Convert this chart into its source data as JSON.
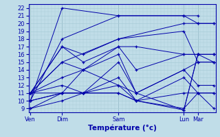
{
  "xlabel": "Température (°c)",
  "bg_color": "#c0dde8",
  "grid_color_minor": "#a8ccd8",
  "grid_color_major": "#88aab8",
  "line_color": "#0000aa",
  "marker": "+",
  "ylim": [
    8.5,
    22.5
  ],
  "yticks": [
    9,
    10,
    11,
    12,
    13,
    14,
    15,
    16,
    17,
    18,
    19,
    20,
    21,
    22
  ],
  "xlim": [
    -0.05,
    5.25
  ],
  "day_positions": [
    0.0,
    0.9,
    2.5,
    4.35,
    4.75
  ],
  "day_labels": [
    "Ven",
    "Dim",
    "Sam",
    "Lun",
    "Mar"
  ],
  "series": [
    {
      "x": [
        0.0,
        0.9,
        2.5,
        4.35,
        4.75
      ],
      "y": [
        10,
        22,
        21,
        21,
        21
      ]
    },
    {
      "x": [
        0.0,
        0.9,
        2.5,
        4.35,
        4.75,
        5.2
      ],
      "y": [
        10,
        18,
        21,
        21,
        20,
        20
      ]
    },
    {
      "x": [
        0.0,
        0.9,
        2.5,
        4.35,
        4.75,
        5.2
      ],
      "y": [
        11,
        15,
        18,
        20,
        20,
        20
      ]
    },
    {
      "x": [
        0.0,
        0.9,
        1.5,
        2.5,
        4.35,
        4.75,
        5.2
      ],
      "y": [
        11,
        17,
        16,
        18,
        19,
        15,
        15
      ]
    },
    {
      "x": [
        0.0,
        0.9,
        1.5,
        2.5,
        3.0,
        4.35,
        4.75,
        5.2
      ],
      "y": [
        11,
        17,
        15,
        17,
        17,
        16,
        16,
        16
      ]
    },
    {
      "x": [
        0.0,
        0.9,
        1.5,
        2.5,
        3.0,
        4.35,
        4.75,
        5.2
      ],
      "y": [
        11,
        15,
        14,
        17,
        14,
        16,
        16,
        15
      ]
    },
    {
      "x": [
        0.0,
        0.9,
        1.5,
        2.5,
        3.0,
        4.35,
        4.75,
        5.2
      ],
      "y": [
        11,
        13,
        14,
        16,
        11,
        14,
        15,
        15
      ]
    },
    {
      "x": [
        0.0,
        0.9,
        1.5,
        2.5,
        3.0,
        4.35,
        4.75,
        5.2
      ],
      "y": [
        10,
        11,
        11,
        15,
        11,
        14,
        12,
        12
      ]
    },
    {
      "x": [
        0.0,
        0.9,
        1.5,
        2.5,
        3.0,
        4.35,
        4.75,
        5.2
      ],
      "y": [
        10,
        11,
        11,
        13,
        10,
        13,
        11,
        11
      ]
    },
    {
      "x": [
        0.0,
        0.9,
        1.5,
        2.5,
        3.0,
        4.35,
        4.75,
        5.2
      ],
      "y": [
        9,
        11,
        11,
        11,
        10,
        11,
        11,
        9
      ]
    },
    {
      "x": [
        0.0,
        0.9,
        1.5,
        2.5,
        3.0,
        4.35,
        4.75,
        5.2
      ],
      "y": [
        9,
        10,
        11,
        11,
        10,
        9,
        11,
        11
      ]
    },
    {
      "x": [
        0.0,
        0.9,
        1.5,
        2.5,
        3.0,
        4.35,
        4.75,
        5.2
      ],
      "y": [
        11,
        12,
        11,
        12,
        10,
        8.8,
        16,
        16
      ]
    },
    {
      "x": [
        0.0,
        0.9,
        1.5,
        2.5,
        3.0,
        4.35,
        4.75,
        5.2
      ],
      "y": [
        11,
        11,
        14,
        12,
        11,
        8.8,
        16,
        16
      ]
    }
  ]
}
